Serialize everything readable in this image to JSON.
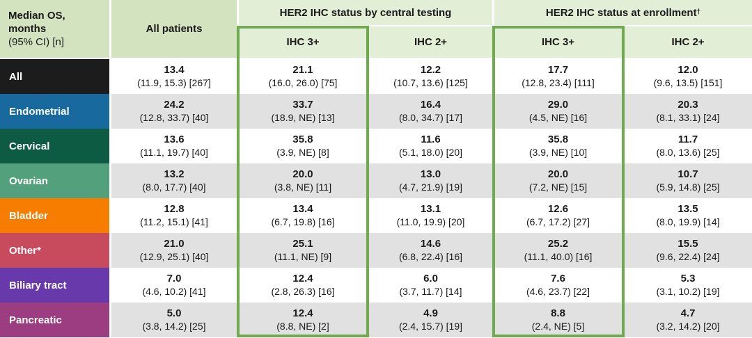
{
  "palette": {
    "header_dark_green": "#d3e3c0",
    "header_light_green": "#e2eed6",
    "highlight_border_green": "#6faa4e",
    "stripe_gray": "#e1e1e1",
    "data_text": "#1a1a1a"
  },
  "table": {
    "corner": {
      "line1": "Median OS,",
      "line2": "months",
      "line3": "(95% CI) [n]"
    },
    "col_groups": [
      {
        "label": "All patients"
      },
      {
        "label": "HER2 IHC status by central testing"
      },
      {
        "label": "HER2 IHC status at enrollment",
        "sup": "†"
      }
    ],
    "sub_headers": [
      "IHC 3+",
      "IHC 2+",
      "IHC 3+",
      "IHC 2+"
    ],
    "rows": [
      {
        "label": "All",
        "color": "#1c1c1c",
        "cells": [
          {
            "median": "13.4",
            "ci": "(11.9, 15.3) [267]"
          },
          {
            "median": "21.1",
            "ci": "(16.0, 26.0) [75]"
          },
          {
            "median": "12.2",
            "ci": "(10.7, 13.6) [125]"
          },
          {
            "median": "17.7",
            "ci": "(12.8, 23.4) [111]"
          },
          {
            "median": "12.0",
            "ci": "(9.6, 13.5) [151]"
          }
        ]
      },
      {
        "label": "Endometrial",
        "color": "#17699e",
        "cells": [
          {
            "median": "24.2",
            "ci": "(12.8, 33.7) [40]"
          },
          {
            "median": "33.7",
            "ci": "(18.9, NE) [13]"
          },
          {
            "median": "16.4",
            "ci": "(8.0, 34.7) [17]"
          },
          {
            "median": "29.0",
            "ci": "(4.5, NE) [16]"
          },
          {
            "median": "20.3",
            "ci": "(8.1, 33.1) [24]"
          }
        ]
      },
      {
        "label": "Cervical",
        "color": "#0e5b44",
        "cells": [
          {
            "median": "13.6",
            "ci": "(11.1, 19.7) [40]"
          },
          {
            "median": "35.8",
            "ci": "(3.9, NE) [8]"
          },
          {
            "median": "11.6",
            "ci": "(5.1, 18.0) [20]"
          },
          {
            "median": "35.8",
            "ci": "(3.9, NE) [10]"
          },
          {
            "median": "11.7",
            "ci": "(8.0, 13.6) [25]"
          }
        ]
      },
      {
        "label": "Ovarian",
        "color": "#52a17c",
        "cells": [
          {
            "median": "13.2",
            "ci": "(8.0, 17.7) [40]"
          },
          {
            "median": "20.0",
            "ci": "(3.8, NE) [11]"
          },
          {
            "median": "13.0",
            "ci": "(4.7, 21.9) [19]"
          },
          {
            "median": "20.0",
            "ci": "(7.2, NE) [15]"
          },
          {
            "median": "10.7",
            "ci": "(5.9, 14.8) [25]"
          }
        ]
      },
      {
        "label": "Bladder",
        "color": "#f67d00",
        "cells": [
          {
            "median": "12.8",
            "ci": "(11.2, 15.1) [41]"
          },
          {
            "median": "13.4",
            "ci": "(6.7, 19.8) [16]"
          },
          {
            "median": "13.1",
            "ci": "(11.0, 19.9) [20]"
          },
          {
            "median": "12.6",
            "ci": "(6.7, 17.2) [27]"
          },
          {
            "median": "13.5",
            "ci": "(8.0, 19.9) [14]"
          }
        ]
      },
      {
        "label": "Other*",
        "color": "#c84a5d",
        "cells": [
          {
            "median": "21.0",
            "ci": "(12.9, 25.1) [40]"
          },
          {
            "median": "25.1",
            "ci": "(11.1, NE) [9]"
          },
          {
            "median": "14.6",
            "ci": "(6.8, 22.4) [16]"
          },
          {
            "median": "25.2",
            "ci": "(11.1, 40.0) [16]"
          },
          {
            "median": "15.5",
            "ci": "(9.6, 22.4) [24]"
          }
        ]
      },
      {
        "label": "Biliary tract",
        "color": "#6839aa",
        "cells": [
          {
            "median": "7.0",
            "ci": "(4.6, 10.2) [41]"
          },
          {
            "median": "12.4",
            "ci": "(2.8, 26.3) [16]"
          },
          {
            "median": "6.0",
            "ci": "(3.7, 11.7) [14]"
          },
          {
            "median": "7.6",
            "ci": "(4.6, 23.7) [22]"
          },
          {
            "median": "5.3",
            "ci": "(3.1, 10.2) [19]"
          }
        ]
      },
      {
        "label": "Pancreatic",
        "color": "#9b3d80",
        "cells": [
          {
            "median": "5.0",
            "ci": "(3.8, 14.2) [25]"
          },
          {
            "median": "12.4",
            "ci": "(8.8, NE) [2]"
          },
          {
            "median": "4.9",
            "ci": "(2.4, 15.7) [19]"
          },
          {
            "median": "8.8",
            "ci": "(2.4, NE) [5]"
          },
          {
            "median": "4.7",
            "ci": "(3.2, 14.2) [20]"
          }
        ]
      }
    ]
  },
  "chart_data": {
    "type": "table",
    "title": "Median OS, months (95% CI) [n]",
    "column_groups": [
      "All patients",
      "HER2 IHC status by central testing",
      "HER2 IHC status at enrollment†"
    ],
    "columns": [
      "All patients",
      "Central IHC 3+",
      "Central IHC 2+",
      "Enrollment IHC 3+",
      "Enrollment IHC 2+"
    ],
    "highlighted_columns": [
      "Central IHC 3+",
      "Enrollment IHC 3+"
    ],
    "rows": [
      {
        "label": "All",
        "median": [
          13.4,
          21.1,
          12.2,
          17.7,
          12.0
        ],
        "ci_low": [
          11.9,
          16.0,
          10.7,
          12.8,
          9.6
        ],
        "ci_high": [
          15.3,
          26.0,
          13.6,
          23.4,
          13.5
        ],
        "n": [
          267,
          75,
          125,
          111,
          151
        ]
      },
      {
        "label": "Endometrial",
        "median": [
          24.2,
          33.7,
          16.4,
          29.0,
          20.3
        ],
        "ci_low": [
          12.8,
          18.9,
          8.0,
          4.5,
          8.1
        ],
        "ci_high": [
          33.7,
          "NE",
          34.7,
          "NE",
          33.1
        ],
        "n": [
          40,
          13,
          17,
          16,
          24
        ]
      },
      {
        "label": "Cervical",
        "median": [
          13.6,
          35.8,
          11.6,
          35.8,
          11.7
        ],
        "ci_low": [
          11.1,
          3.9,
          5.1,
          3.9,
          8.0
        ],
        "ci_high": [
          19.7,
          "NE",
          18.0,
          "NE",
          13.6
        ],
        "n": [
          40,
          8,
          20,
          10,
          25
        ]
      },
      {
        "label": "Ovarian",
        "median": [
          13.2,
          20.0,
          13.0,
          20.0,
          10.7
        ],
        "ci_low": [
          8.0,
          3.8,
          4.7,
          7.2,
          5.9
        ],
        "ci_high": [
          17.7,
          "NE",
          21.9,
          "NE",
          14.8
        ],
        "n": [
          40,
          11,
          19,
          15,
          25
        ]
      },
      {
        "label": "Bladder",
        "median": [
          12.8,
          13.4,
          13.1,
          12.6,
          13.5
        ],
        "ci_low": [
          11.2,
          6.7,
          11.0,
          6.7,
          8.0
        ],
        "ci_high": [
          15.1,
          19.8,
          19.9,
          17.2,
          19.9
        ],
        "n": [
          41,
          16,
          20,
          27,
          14
        ]
      },
      {
        "label": "Other*",
        "median": [
          21.0,
          25.1,
          14.6,
          25.2,
          15.5
        ],
        "ci_low": [
          12.9,
          11.1,
          6.8,
          11.1,
          9.6
        ],
        "ci_high": [
          25.1,
          "NE",
          22.4,
          40.0,
          22.4
        ],
        "n": [
          40,
          9,
          16,
          16,
          24
        ]
      },
      {
        "label": "Biliary tract",
        "median": [
          7.0,
          12.4,
          6.0,
          7.6,
          5.3
        ],
        "ci_low": [
          4.6,
          2.8,
          3.7,
          4.6,
          3.1
        ],
        "ci_high": [
          10.2,
          26.3,
          11.7,
          23.7,
          10.2
        ],
        "n": [
          41,
          16,
          14,
          22,
          19
        ]
      },
      {
        "label": "Pancreatic",
        "median": [
          5.0,
          12.4,
          4.9,
          8.8,
          4.7
        ],
        "ci_low": [
          3.8,
          8.8,
          2.4,
          2.4,
          3.2
        ],
        "ci_high": [
          14.2,
          "NE",
          15.7,
          "NE",
          14.2
        ],
        "n": [
          25,
          2,
          19,
          5,
          20
        ]
      }
    ]
  }
}
